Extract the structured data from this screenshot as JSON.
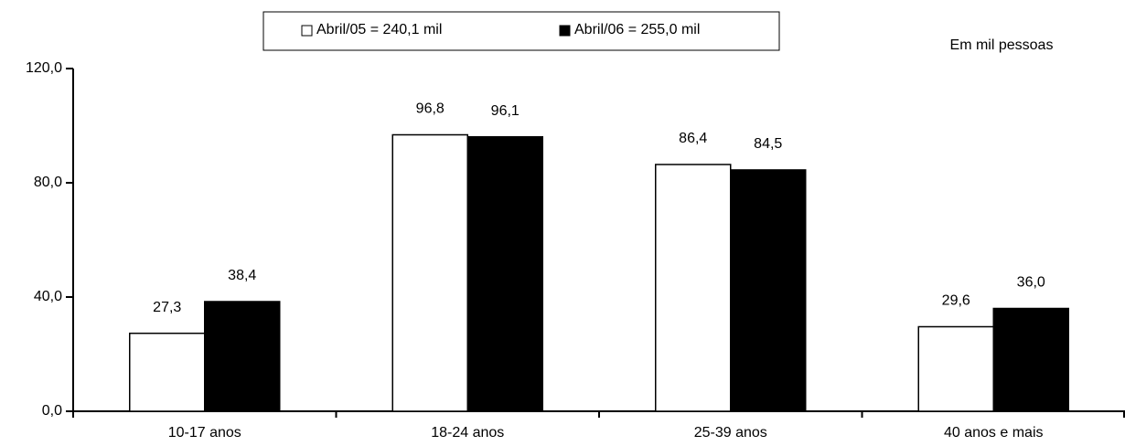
{
  "chart_data": {
    "type": "bar",
    "unit_label": "Em mil pessoas",
    "categories": [
      "10-17 anos",
      "18-24 anos",
      "25-39 anos",
      "40 anos e mais"
    ],
    "series": [
      {
        "name": "Abril/05 = 240,1 mil",
        "color": "#ffffff",
        "values": [
          27.3,
          96.8,
          86.4,
          29.6
        ],
        "value_labels": [
          "27,3",
          "96,8",
          "86,4",
          "29,6"
        ]
      },
      {
        "name": "Abril/06 = 255,0 mil",
        "color": "#000000",
        "values": [
          38.4,
          96.1,
          84.5,
          36.0
        ],
        "value_labels": [
          "38,4",
          "96,1",
          "84,5",
          "36,0"
        ]
      }
    ],
    "ylim": [
      0,
      120
    ],
    "yticks": [
      {
        "value": 0,
        "label": "0,0"
      },
      {
        "value": 40,
        "label": "40,0"
      },
      {
        "value": 80,
        "label": "80,0"
      },
      {
        "value": 120,
        "label": "120,0"
      }
    ],
    "grid": false
  }
}
